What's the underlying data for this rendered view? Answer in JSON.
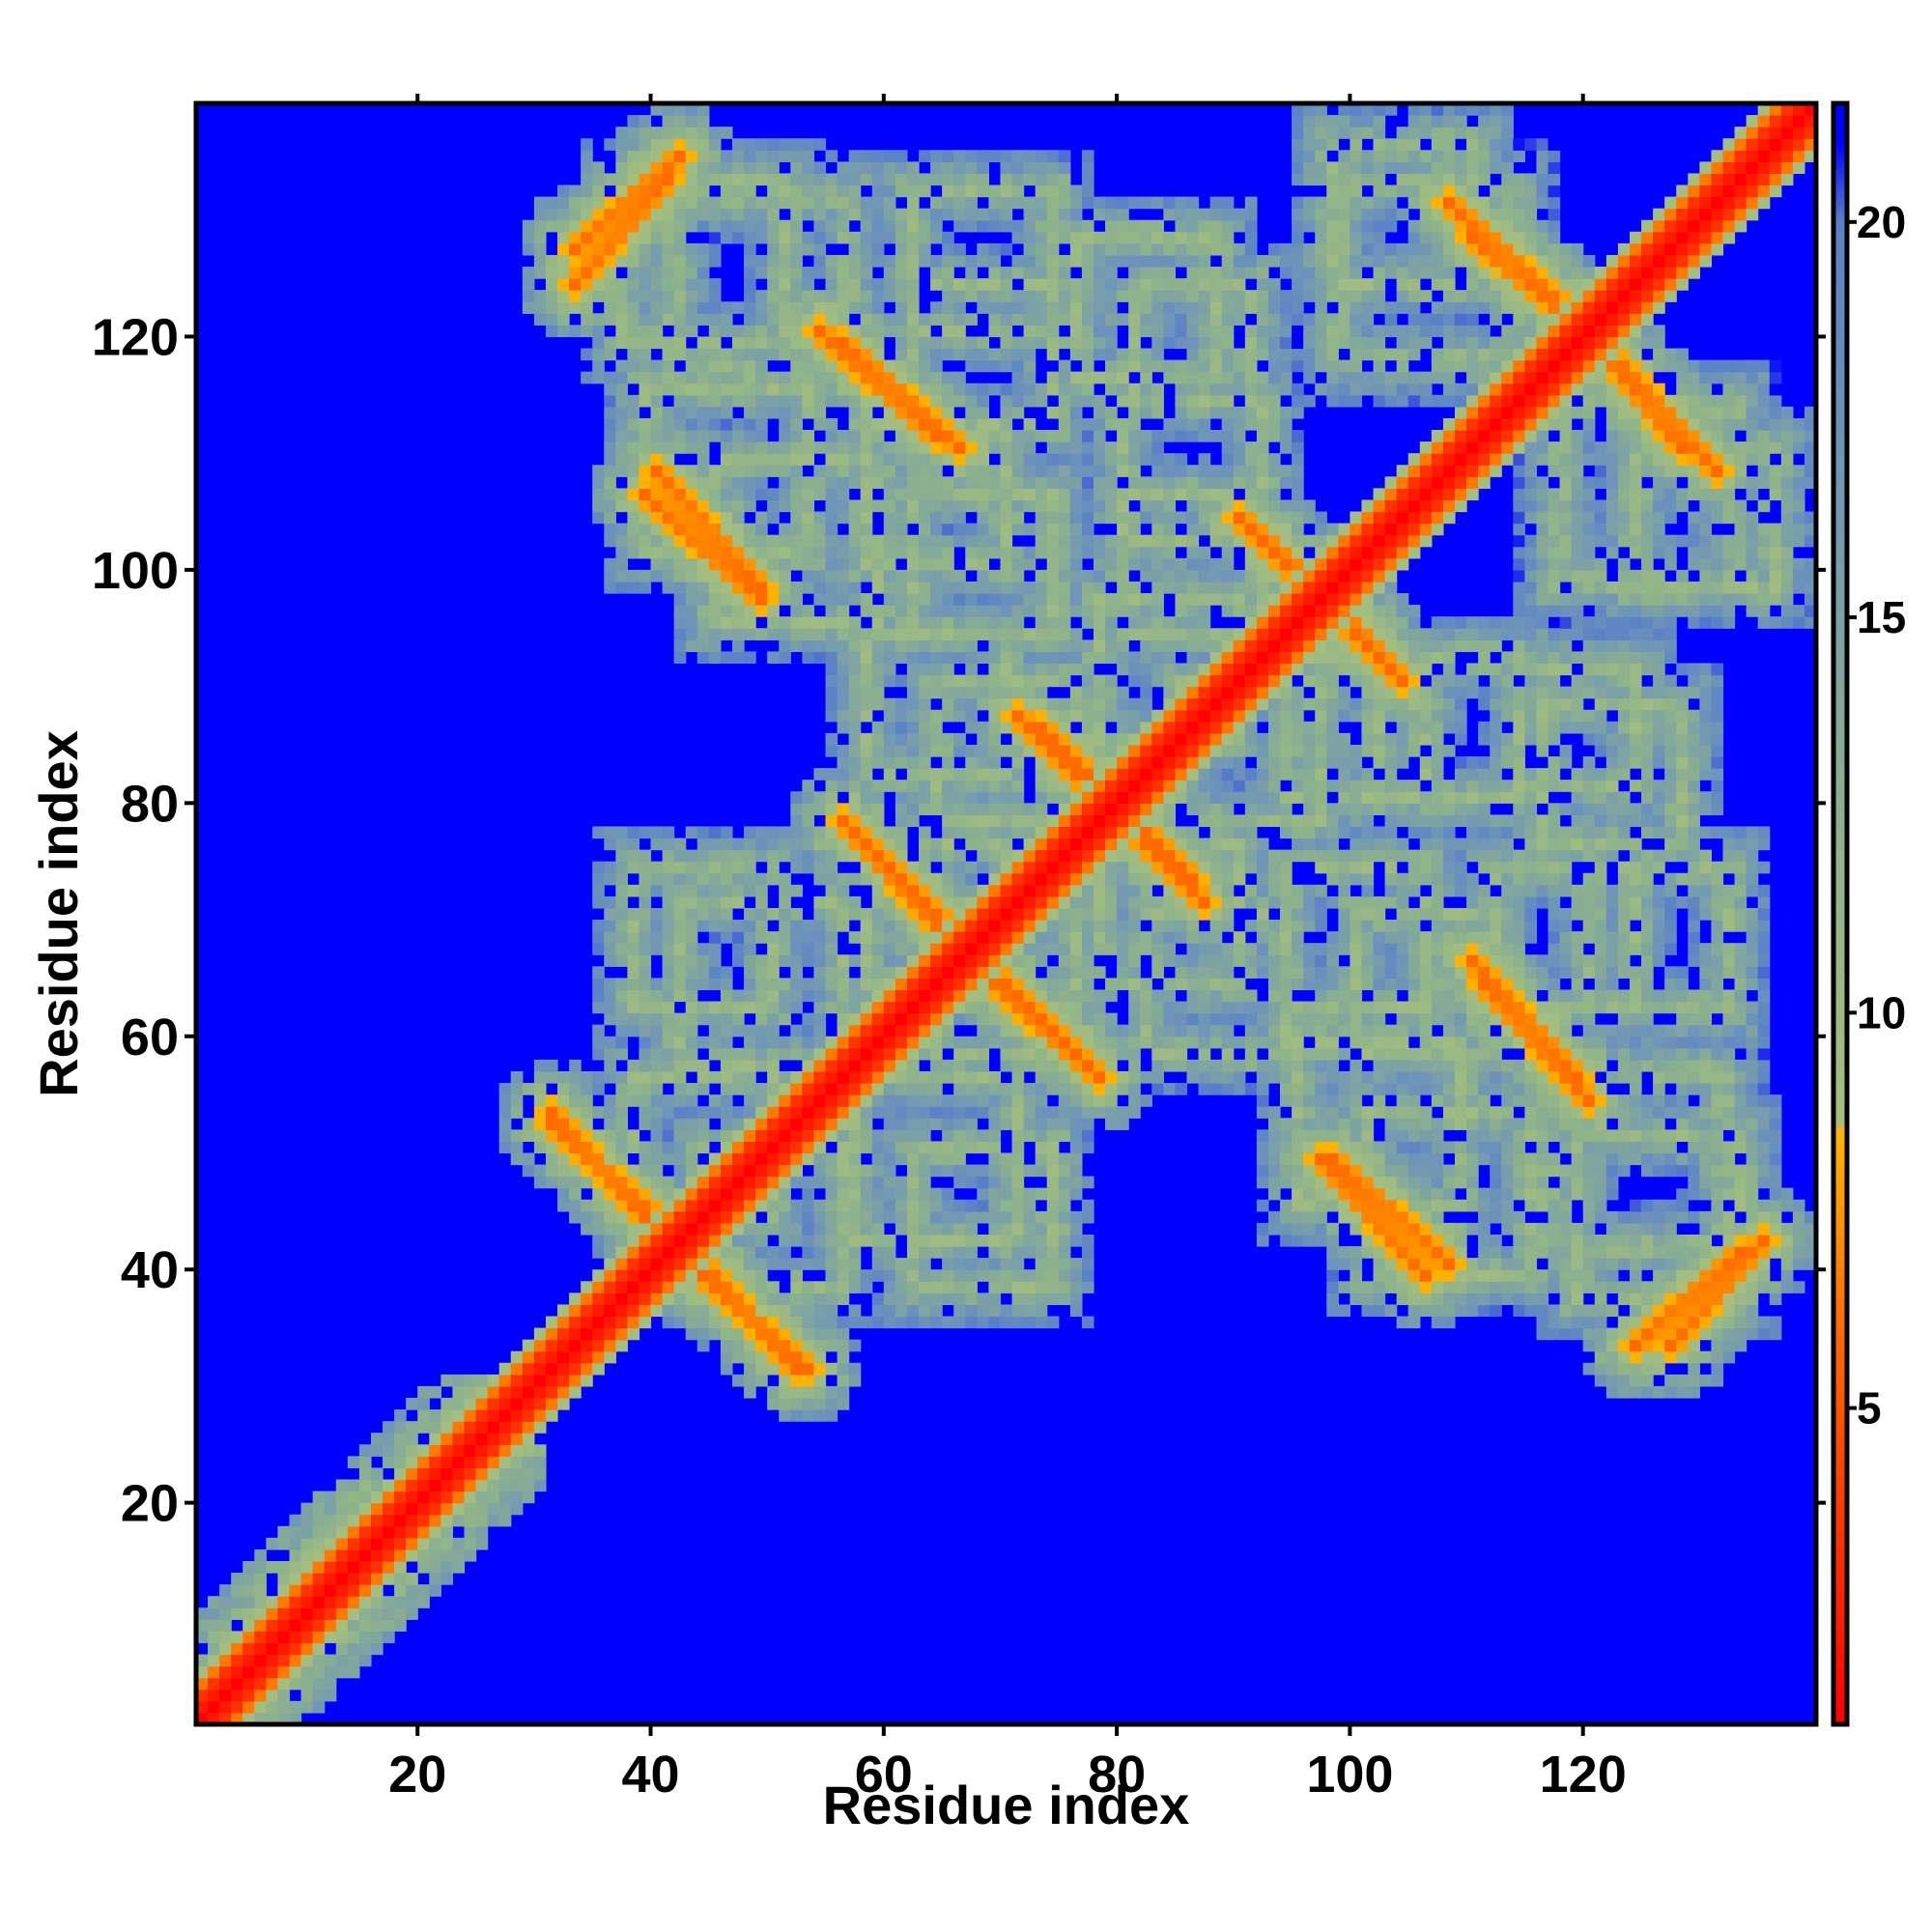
{
  "chart_data": {
    "type": "heatmap",
    "title": "",
    "xlabel": "Residue index",
    "ylabel": "Residue index",
    "n_residues": 139,
    "xlim": [
      1,
      140
    ],
    "ylim": [
      1,
      140
    ],
    "x_ticks": [
      20,
      40,
      60,
      80,
      100,
      120
    ],
    "y_ticks": [
      20,
      40,
      60,
      80,
      100,
      120
    ],
    "colorbar": {
      "ticks": [
        5,
        10,
        15,
        20
      ],
      "range": [
        1,
        21.5
      ],
      "stops": [
        {
          "value": 1.0,
          "color": "#ff0000"
        },
        {
          "value": 6.0,
          "color": "#ff6a00"
        },
        {
          "value": 8.5,
          "color": "#ffb400"
        },
        {
          "value": 8.6,
          "color": "#a6bf7e"
        },
        {
          "value": 12.0,
          "color": "#8fb38a"
        },
        {
          "value": 17.0,
          "color": "#6f95b8"
        },
        {
          "value": 20.0,
          "color": "#5a80c8"
        },
        {
          "value": 21.0,
          "color": "#0000ff"
        },
        {
          "value": 21.5,
          "color": "#0000ff"
        }
      ]
    },
    "background_color": "#0000ff",
    "diagonal_band": {
      "half_width": 2.5,
      "color": "#ff0000"
    },
    "n_terminal_band": {
      "from": 1,
      "to": 28,
      "width": 9
    },
    "crossing_segments": [
      {
        "x1": 33,
        "y1": 127,
        "x2": 42,
        "y2": 135
      },
      {
        "x1": 39,
        "y1": 106,
        "x2": 49,
        "y2": 97
      },
      {
        "x1": 56,
        "y1": 119,
        "x2": 66,
        "y2": 110
      },
      {
        "x1": 31,
        "y1": 52,
        "x2": 40,
        "y2": 44
      },
      {
        "x1": 44,
        "y1": 39,
        "x2": 53,
        "y2": 31
      },
      {
        "x1": 56,
        "y1": 78,
        "x2": 65,
        "y2": 69
      },
      {
        "x1": 73,
        "y1": 86,
        "x2": 82,
        "y2": 77
      },
      {
        "x1": 68,
        "y1": 65,
        "x2": 78,
        "y2": 56
      },
      {
        "x1": 78,
        "y1": 80,
        "x2": 87,
        "y2": 71
      },
      {
        "x1": 90,
        "y1": 104,
        "x2": 99,
        "y2": 96
      },
      {
        "x1": 97,
        "y1": 97,
        "x2": 104,
        "y2": 90
      },
      {
        "x1": 110,
        "y1": 128,
        "x2": 121,
        "y2": 119
      },
      {
        "x1": 121,
        "y1": 119,
        "x2": 131,
        "y2": 108
      },
      {
        "x1": 111,
        "y1": 64,
        "x2": 120,
        "y2": 54
      },
      {
        "x1": 98,
        "y1": 49,
        "x2": 108,
        "y2": 40
      },
      {
        "x1": 124,
        "y1": 33,
        "x2": 133,
        "y2": 41
      }
    ],
    "blocks": [
      {
        "cx": 49,
        "cy": 124,
        "size": 15
      },
      {
        "cx": 68,
        "cy": 118,
        "size": 12
      },
      {
        "cx": 86,
        "cy": 119,
        "size": 10
      },
      {
        "cx": 106,
        "cy": 125,
        "size": 15
      },
      {
        "cx": 52,
        "cy": 102,
        "size": 14
      },
      {
        "cx": 68,
        "cy": 100,
        "size": 12
      },
      {
        "cx": 86,
        "cy": 100,
        "size": 12
      },
      {
        "cx": 130,
        "cy": 104,
        "size": 12
      },
      {
        "cx": 70,
        "cy": 84,
        "size": 12
      },
      {
        "cx": 91,
        "cy": 84,
        "size": 12
      },
      {
        "cx": 108,
        "cy": 86,
        "size": 12
      },
      {
        "cx": 122,
        "cy": 82,
        "size": 12
      },
      {
        "cx": 49,
        "cy": 64,
        "size": 14
      },
      {
        "cx": 70,
        "cy": 64,
        "size": 12
      },
      {
        "cx": 88,
        "cy": 64,
        "size": 12
      },
      {
        "cx": 106,
        "cy": 64,
        "size": 12
      },
      {
        "cx": 126,
        "cy": 68,
        "size": 12
      },
      {
        "cx": 50,
        "cy": 44,
        "size": 12
      },
      {
        "cx": 68,
        "cy": 44,
        "size": 12
      },
      {
        "cx": 108,
        "cy": 46,
        "size": 14
      },
      {
        "cx": 126,
        "cy": 44,
        "size": 14
      }
    ]
  }
}
